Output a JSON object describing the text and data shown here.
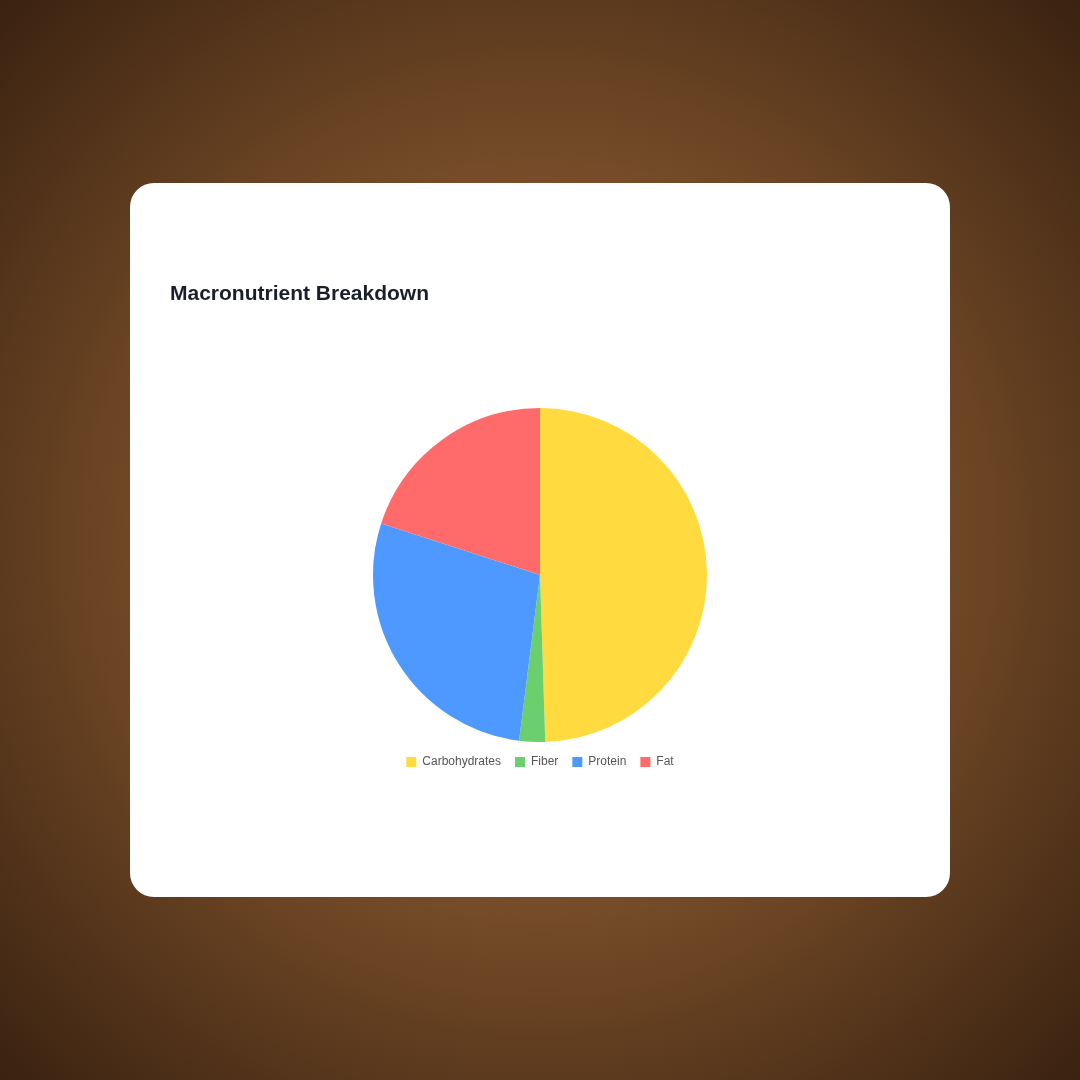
{
  "chart_data": {
    "type": "pie",
    "title": "Macronutrient Breakdown",
    "categories": [
      "Carbohydrates",
      "Fiber",
      "Protein",
      "Fat"
    ],
    "values": [
      49.5,
      2.5,
      28,
      20
    ],
    "colors": [
      "#ffdb3f",
      "#6ccf6e",
      "#4d99ff",
      "#ff6b6b"
    ],
    "legend": "bottom"
  }
}
